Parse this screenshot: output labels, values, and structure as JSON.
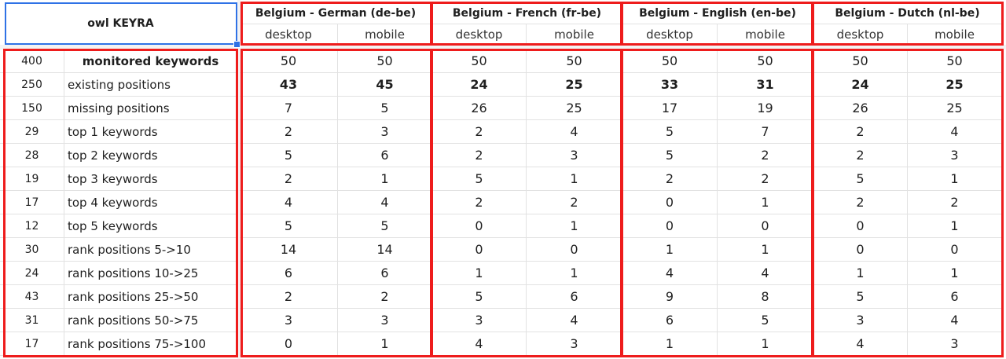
{
  "title": "owl KEYRA",
  "locales": [
    {
      "name": "Belgium - German (de-be)",
      "devices": [
        "desktop",
        "mobile"
      ]
    },
    {
      "name": "Belgium - French (fr-be)",
      "devices": [
        "desktop",
        "mobile"
      ]
    },
    {
      "name": "Belgium - English (en-be)",
      "devices": [
        "desktop",
        "mobile"
      ]
    },
    {
      "name": "Belgium - Dutch (nl-be)",
      "devices": [
        "desktop",
        "mobile"
      ]
    }
  ],
  "rows": [
    {
      "total": "400",
      "label": "monitored keywords",
      "bold_label": true,
      "bold_values": false,
      "values": [
        "50",
        "50",
        "50",
        "50",
        "50",
        "50",
        "50",
        "50"
      ]
    },
    {
      "total": "250",
      "label": "existing positions",
      "bold_label": false,
      "bold_values": true,
      "values": [
        "43",
        "45",
        "24",
        "25",
        "33",
        "31",
        "24",
        "25"
      ]
    },
    {
      "total": "150",
      "label": "missing positions",
      "bold_label": false,
      "bold_values": false,
      "values": [
        "7",
        "5",
        "26",
        "25",
        "17",
        "19",
        "26",
        "25"
      ]
    },
    {
      "total": "29",
      "label": "top 1 keywords",
      "bold_label": false,
      "bold_values": false,
      "values": [
        "2",
        "3",
        "2",
        "4",
        "5",
        "7",
        "2",
        "4"
      ]
    },
    {
      "total": "28",
      "label": "top 2 keywords",
      "bold_label": false,
      "bold_values": false,
      "values": [
        "5",
        "6",
        "2",
        "3",
        "5",
        "2",
        "2",
        "3"
      ]
    },
    {
      "total": "19",
      "label": "top 3 keywords",
      "bold_label": false,
      "bold_values": false,
      "values": [
        "2",
        "1",
        "5",
        "1",
        "2",
        "2",
        "5",
        "1"
      ]
    },
    {
      "total": "17",
      "label": "top 4 keywords",
      "bold_label": false,
      "bold_values": false,
      "values": [
        "4",
        "4",
        "2",
        "2",
        "0",
        "1",
        "2",
        "2"
      ]
    },
    {
      "total": "12",
      "label": "top 5 keywords",
      "bold_label": false,
      "bold_values": false,
      "values": [
        "5",
        "5",
        "0",
        "1",
        "0",
        "0",
        "0",
        "1"
      ]
    },
    {
      "total": "30",
      "label": "rank positions 5->10",
      "bold_label": false,
      "bold_values": false,
      "values": [
        "14",
        "14",
        "0",
        "0",
        "1",
        "1",
        "0",
        "0"
      ]
    },
    {
      "total": "24",
      "label": "rank positions 10->25",
      "bold_label": false,
      "bold_values": false,
      "values": [
        "6",
        "6",
        "1",
        "1",
        "4",
        "4",
        "1",
        "1"
      ]
    },
    {
      "total": "43",
      "label": "rank positions 25->50",
      "bold_label": false,
      "bold_values": false,
      "values": [
        "2",
        "2",
        "5",
        "6",
        "9",
        "8",
        "5",
        "6"
      ]
    },
    {
      "total": "31",
      "label": "rank positions 50->75",
      "bold_label": false,
      "bold_values": false,
      "values": [
        "3",
        "3",
        "3",
        "4",
        "6",
        "5",
        "3",
        "4"
      ]
    },
    {
      "total": "17",
      "label": "rank positions 75->100",
      "bold_label": false,
      "bold_values": false,
      "values": [
        "0",
        "1",
        "4",
        "3",
        "1",
        "1",
        "4",
        "3"
      ]
    }
  ]
}
